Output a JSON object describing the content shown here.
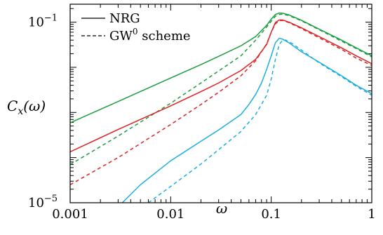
{
  "chart_data": {
    "type": "line",
    "title": "",
    "xlabel": "ω",
    "ylabel": "C_x(ω)",
    "xscale": "log",
    "yscale": "log",
    "xlim": [
      0.001,
      1
    ],
    "ylim": [
      1e-05,
      0.25
    ],
    "grid": false,
    "legend_position": "top-left",
    "x_tick_labels": [
      {
        "value": 0.001,
        "label": "0.001"
      },
      {
        "value": 0.01,
        "label": "0.01"
      },
      {
        "value": 0.1,
        "label": "0.1"
      },
      {
        "value": 1,
        "label": "1"
      }
    ],
    "y_tick_labels": [
      {
        "value": 0.1,
        "base": "10",
        "exp": "−1"
      },
      {
        "value": 1e-05,
        "base": "10",
        "exp": "−5"
      }
    ],
    "legend": [
      {
        "label": "NRG",
        "style": "solid"
      },
      {
        "label_main": "GW",
        "label_sup": "0",
        "label_rest": " scheme",
        "style": "dashed"
      }
    ],
    "series": [
      {
        "color": "#1a9e3f",
        "method": "NRG",
        "style": "solid",
        "points": [
          [
            0.001,
            0.00059
          ],
          [
            0.003,
            0.00175
          ],
          [
            0.01,
            0.0058
          ],
          [
            0.02,
            0.0115
          ],
          [
            0.03,
            0.0175
          ],
          [
            0.05,
            0.03
          ],
          [
            0.07,
            0.048
          ],
          [
            0.09,
            0.085
          ],
          [
            0.1,
            0.117
          ],
          [
            0.11,
            0.148
          ],
          [
            0.12,
            0.16
          ],
          [
            0.13,
            0.158
          ],
          [
            0.15,
            0.145
          ],
          [
            0.2,
            0.11
          ],
          [
            0.3,
            0.07
          ],
          [
            0.5,
            0.04
          ],
          [
            0.7,
            0.027
          ],
          [
            1,
            0.018
          ]
        ]
      },
      {
        "color": "#1a9e3f",
        "method": "GW0",
        "style": "dashed",
        "points": [
          [
            0.001,
            7e-05
          ],
          [
            0.003,
            0.0003
          ],
          [
            0.01,
            0.0016
          ],
          [
            0.02,
            0.0045
          ],
          [
            0.03,
            0.0083
          ],
          [
            0.05,
            0.018
          ],
          [
            0.07,
            0.04
          ],
          [
            0.09,
            0.078
          ],
          [
            0.1,
            0.105
          ],
          [
            0.11,
            0.135
          ],
          [
            0.12,
            0.148
          ],
          [
            0.13,
            0.15
          ],
          [
            0.15,
            0.14
          ],
          [
            0.2,
            0.107
          ],
          [
            0.3,
            0.068
          ],
          [
            0.5,
            0.038
          ],
          [
            0.7,
            0.026
          ],
          [
            1,
            0.017
          ]
        ]
      },
      {
        "color": "#dd2222",
        "method": "NRG",
        "style": "solid",
        "points": [
          [
            0.001,
            0.000134
          ],
          [
            0.003,
            0.00042
          ],
          [
            0.01,
            0.0014
          ],
          [
            0.02,
            0.0029
          ],
          [
            0.03,
            0.0045
          ],
          [
            0.05,
            0.0085
          ],
          [
            0.07,
            0.015
          ],
          [
            0.09,
            0.032
          ],
          [
            0.1,
            0.06
          ],
          [
            0.11,
            0.098
          ],
          [
            0.12,
            0.112
          ],
          [
            0.13,
            0.112
          ],
          [
            0.15,
            0.1
          ],
          [
            0.2,
            0.075
          ],
          [
            0.3,
            0.048
          ],
          [
            0.5,
            0.027
          ],
          [
            0.7,
            0.018
          ],
          [
            1,
            0.012
          ]
        ]
      },
      {
        "color": "#dd2222",
        "method": "GW0",
        "style": "dashed",
        "points": [
          [
            0.001,
            2.5e-05
          ],
          [
            0.003,
            0.0001
          ],
          [
            0.01,
            0.00054
          ],
          [
            0.02,
            0.0015
          ],
          [
            0.03,
            0.0028
          ],
          [
            0.05,
            0.0065
          ],
          [
            0.07,
            0.014
          ],
          [
            0.09,
            0.033
          ],
          [
            0.1,
            0.06
          ],
          [
            0.11,
            0.092
          ],
          [
            0.12,
            0.108
          ],
          [
            0.13,
            0.109
          ],
          [
            0.15,
            0.098
          ],
          [
            0.2,
            0.072
          ],
          [
            0.3,
            0.045
          ],
          [
            0.5,
            0.025
          ],
          [
            0.7,
            0.016
          ],
          [
            1,
            0.011
          ]
        ]
      },
      {
        "color": "#1aaee0",
        "method": "NRG",
        "style": "solid",
        "points": [
          [
            0.0033,
            1e-05
          ],
          [
            0.005,
            2.5e-05
          ],
          [
            0.01,
            8.5e-05
          ],
          [
            0.02,
            0.00023
          ],
          [
            0.03,
            0.00041
          ],
          [
            0.05,
            0.0009
          ],
          [
            0.06,
            0.0015
          ],
          [
            0.07,
            0.0025
          ],
          [
            0.08,
            0.0045
          ],
          [
            0.09,
            0.009
          ],
          [
            0.1,
            0.018
          ],
          [
            0.11,
            0.035
          ],
          [
            0.12,
            0.044
          ],
          [
            0.13,
            0.042
          ],
          [
            0.15,
            0.035
          ],
          [
            0.2,
            0.022
          ],
          [
            0.3,
            0.013
          ],
          [
            0.5,
            0.0065
          ],
          [
            0.7,
            0.004
          ],
          [
            1,
            0.0026
          ]
        ]
      },
      {
        "color": "#1aaee0",
        "method": "GW0",
        "style": "dashed",
        "points": [
          [
            0.006,
            1e-05
          ],
          [
            0.01,
            2.3e-05
          ],
          [
            0.02,
            7.2e-05
          ],
          [
            0.03,
            0.00015
          ],
          [
            0.05,
            0.00038
          ],
          [
            0.07,
            0.0009
          ],
          [
            0.09,
            0.0024
          ],
          [
            0.1,
            0.0055
          ],
          [
            0.11,
            0.015
          ],
          [
            0.12,
            0.032
          ],
          [
            0.13,
            0.04
          ],
          [
            0.14,
            0.04
          ],
          [
            0.16,
            0.034
          ],
          [
            0.2,
            0.024
          ],
          [
            0.3,
            0.0125
          ],
          [
            0.5,
            0.0062
          ],
          [
            0.7,
            0.0038
          ],
          [
            1,
            0.0024
          ]
        ]
      }
    ]
  }
}
